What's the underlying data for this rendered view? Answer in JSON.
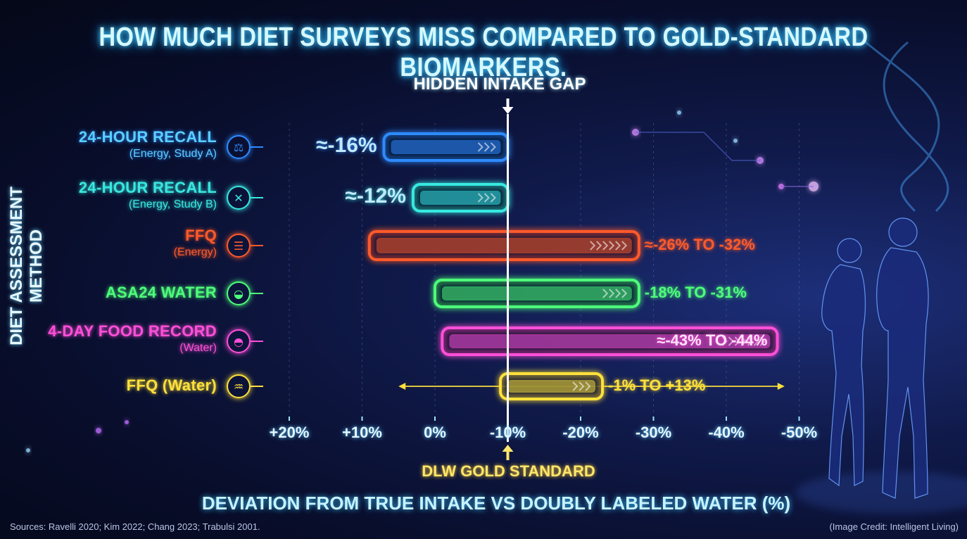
{
  "title": "HOW MUCH DIET SURVEYS MISS COMPARED TO GOLD-STANDARD BIOMARKERS.",
  "colors": {
    "cyan": "#3fd9ff",
    "blue": "#2f8bff",
    "teal": "#39e8e0",
    "orange": "#ff5a2a",
    "green": "#4dff7a",
    "magenta": "#ff4fd8",
    "yellow": "#ffe13a",
    "white": "#ffffff"
  },
  "chart_data": {
    "type": "bar",
    "title": "HOW MUCH DIET SURVEYS MISS COMPARED TO GOLD-STANDARD BIOMARKERS.",
    "xlabel": "DEVIATION FROM TRUE INTAKE VS DOUBLY LABELED WATER (%)",
    "ylabel": "DIET ASSESSMENT METHOD",
    "x_ticks": [
      "+20%",
      "+10%",
      "0%",
      "-10%",
      "-20%",
      "-30%",
      "-40%",
      "-50%"
    ],
    "x_tick_values": [
      20,
      10,
      0,
      -10,
      -20,
      -30,
      -40,
      -50
    ],
    "xlim": [
      23,
      -52
    ],
    "reference_line": {
      "value": -10,
      "label_top": "HIDDEN INTAKE GAP",
      "label_bottom": "DLW GOLD STANDARD"
    },
    "series": [
      {
        "name": "24-HOUR RECALL",
        "sub": "(Energy, Study A)",
        "start": 7,
        "end": -10,
        "label": "≈-16%",
        "label_side": "left",
        "color": "#2f8bff",
        "icon": "weight-scale-icon",
        "glyph": "⚖"
      },
      {
        "name": "24-HOUR RECALL",
        "sub": "(Energy, Study B)",
        "start": 3,
        "end": -10,
        "label": "≈-12%",
        "label_side": "left",
        "color": "#39e8e0",
        "icon": "dna-icon",
        "glyph": "✕"
      },
      {
        "name": "FFQ",
        "sub": "(Energy)",
        "start": 9,
        "end": -28,
        "label": "≈-26% TO -32%",
        "label_side": "right",
        "color": "#ff5a2a",
        "icon": "clipboard-icon",
        "glyph": "☰"
      },
      {
        "name": "ASA24 WATER",
        "sub": "",
        "start": 0,
        "end": -28,
        "label": "-18% TO -31%",
        "label_side": "right",
        "color": "#4dff7a",
        "icon": "water-drop-icon",
        "glyph": "◒"
      },
      {
        "name": "4-DAY FOOD RECORD",
        "sub": "(Water)",
        "start": -1,
        "end": -47,
        "label": "≈-43% TO -44%",
        "label_side": "inside",
        "color": "#ff4fd8",
        "icon": "water-drop-icon",
        "glyph": "◓"
      },
      {
        "name": "FFQ (Water)",
        "sub": "",
        "start": -9,
        "end": -23,
        "label": "-1% TO +13%",
        "label_side": "right",
        "color": "#ffe13a",
        "icon": "glass-icon",
        "glyph": "♒",
        "range_arrow": [
          5,
          -48
        ]
      }
    ]
  },
  "footer": {
    "sources": "Sources: Ravelli 2020; Kim 2022; Chang 2023; Trabulsi 2001.",
    "credit": "(Image Credit: Intelligent Living)"
  }
}
